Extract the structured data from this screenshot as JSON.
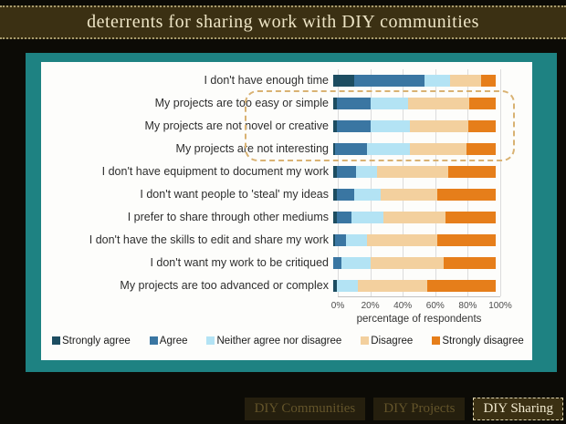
{
  "title": "deterrents for sharing work with DIY communities",
  "colors": {
    "slide_bg": "#0c0b06",
    "title_bar_bg": "#3b3013",
    "title_text": "#eee5c6",
    "panel_teal": "#1e8282",
    "chart_bg": "#fdfdfb",
    "gridline": "#dcdcdc",
    "highlight_border": "#d9b272",
    "tab_inactive_text": "#63542a",
    "tab_active_text": "#f1e9cf"
  },
  "chart_data": {
    "type": "bar",
    "orientation": "horizontal",
    "stacked": true,
    "title": "deterrents for sharing work with DIY communities",
    "xlabel": "percentage of respondents",
    "ylabel": "",
    "xlim": [
      0,
      100
    ],
    "xticks": [
      "0%",
      "20%",
      "40%",
      "60%",
      "80%",
      "100%"
    ],
    "grid": true,
    "legend_position": "bottom",
    "categories": [
      "I don't have enough time",
      "My projects are too easy or simple",
      "My projects are not novel or creative",
      "My projects are not interesting",
      "I don't have equipment to document my work",
      "I don't want people to 'steal' my ideas",
      "I prefer to share through other mediums",
      "I don't have the skills to edit and share my work",
      "I don't want my work to be critiqued",
      "My projects are too advanced or complex"
    ],
    "series": [
      {
        "name": "Strongly agree",
        "color": "#1d4d61",
        "values": [
          13,
          2,
          2,
          1,
          2,
          2,
          2,
          1,
          0,
          2
        ]
      },
      {
        "name": "Agree",
        "color": "#3a76a2",
        "values": [
          43,
          21,
          21,
          20,
          12,
          11,
          9,
          7,
          5,
          0
        ]
      },
      {
        "name": "Neither agree nor disagree",
        "color": "#b3e3f4",
        "values": [
          16,
          23,
          24,
          26,
          13,
          16,
          20,
          13,
          18,
          13
        ]
      },
      {
        "name": "Disagree",
        "color": "#f3d09e",
        "values": [
          19,
          38,
          36,
          35,
          44,
          35,
          38,
          43,
          45,
          43
        ]
      },
      {
        "name": "Strongly disagree",
        "color": "#e67e1a",
        "values": [
          9,
          16,
          17,
          18,
          29,
          36,
          31,
          36,
          32,
          42
        ]
      }
    ],
    "highlighted_category_indices": [
      1,
      2,
      3
    ]
  },
  "tabs": [
    {
      "label": "DIY Communities",
      "active": false
    },
    {
      "label": "DIY Projects",
      "active": false
    },
    {
      "label": "DIY Sharing",
      "active": true
    }
  ]
}
